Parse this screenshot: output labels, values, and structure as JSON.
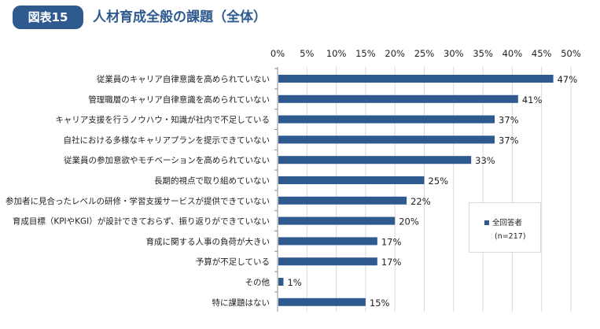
{
  "header": {
    "figure_badge": "図表15",
    "title": "人材育成全般の課題（全体）"
  },
  "colors": {
    "badge": "#2f5a8f",
    "title": "#2f5a8f",
    "bar": "#2f5a8f",
    "grid": "#d9d9d9"
  },
  "chart_data": {
    "type": "bar",
    "orientation": "horizontal",
    "title": "人材育成全般の課題（全体）",
    "xlabel": "",
    "ylabel": "",
    "xlim": [
      0,
      50
    ],
    "tick_values": [
      0,
      5,
      10,
      15,
      20,
      25,
      30,
      35,
      40,
      45,
      50
    ],
    "tick_labels": [
      "0%",
      "5%",
      "10%",
      "15%",
      "20%",
      "25%",
      "30%",
      "35%",
      "40%",
      "45%",
      "50%"
    ],
    "grid": true,
    "legend_position": "lower-right",
    "series": [
      {
        "name": "全回答者",
        "note": "(n=217)",
        "values": [
          47,
          41,
          37,
          37,
          33,
          25,
          22,
          20,
          17,
          17,
          1,
          15
        ],
        "value_labels": [
          "47%",
          "41%",
          "37%",
          "37%",
          "33%",
          "25%",
          "22%",
          "20%",
          "17%",
          "17%",
          "1%",
          "15%"
        ]
      }
    ],
    "categories": [
      "従業員のキャリア自律意識を高められていない",
      "管理職層のキャリア自律意識を高められていない",
      "キャリア支援を行うノウハウ・知識が社内で不足している",
      "自社における多様なキャリアプランを提示できていない",
      "従業員の参加意欲やモチベーションを高められていない",
      "長期的視点で取り組めていない",
      "参加者に見合ったレベルの研修・学習支援サービスが提供できていない",
      "育成目標（KPIやKGI）が設計できておらず、振り返りができていない",
      "育成に関する人事の負荷が大きい",
      "予算が不足している",
      "その他",
      "特に課題はない"
    ]
  }
}
